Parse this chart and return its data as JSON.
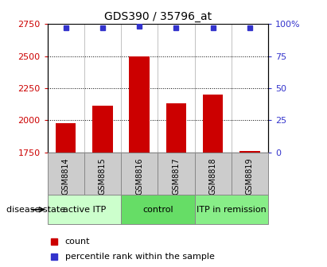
{
  "title": "GDS390 / 35796_at",
  "samples": [
    "GSM8814",
    "GSM8815",
    "GSM8816",
    "GSM8817",
    "GSM8818",
    "GSM8819"
  ],
  "counts": [
    1975,
    2110,
    2500,
    2130,
    2200,
    1760
  ],
  "percentile_ranks": [
    97,
    97,
    98,
    97,
    97,
    97
  ],
  "ylim_left": [
    1750,
    2750
  ],
  "ylim_right": [
    0,
    100
  ],
  "yticks_left": [
    1750,
    2000,
    2250,
    2500,
    2750
  ],
  "yticks_right": [
    0,
    25,
    50,
    75,
    100
  ],
  "bar_color": "#cc0000",
  "marker_color": "#3333cc",
  "bar_width": 0.55,
  "groups": [
    {
      "label": "active ITP",
      "indices": [
        0,
        1
      ],
      "color": "#ccffcc"
    },
    {
      "label": "control",
      "indices": [
        2,
        3
      ],
      "color": "#66dd66"
    },
    {
      "label": "ITP in remission",
      "indices": [
        4,
        5
      ],
      "color": "#88ee88"
    }
  ],
  "disease_state_label": "disease state",
  "legend_count_label": "count",
  "legend_percentile_label": "percentile rank within the sample",
  "tick_label_color_left": "#cc0000",
  "tick_label_color_right": "#3333cc",
  "sample_box_color": "#cccccc",
  "plot_bg_color": "#ffffff",
  "grid_color": "#000000"
}
